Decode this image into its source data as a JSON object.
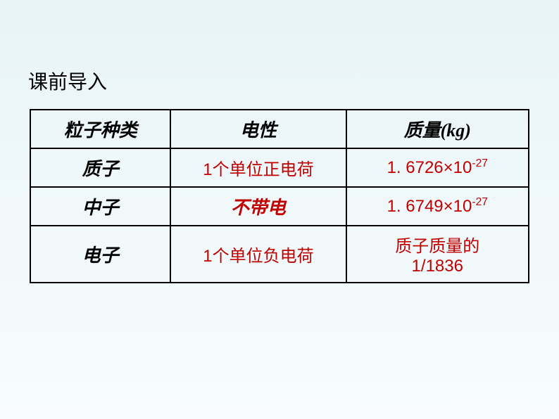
{
  "title": "课前导入",
  "table": {
    "headers": [
      "粒子种类",
      "电性",
      "质量(kg)"
    ],
    "rows": [
      {
        "particle": "质子",
        "charge": "1个单位正电荷",
        "mass_html": "1. 6726×10<sup>-27</sup>"
      },
      {
        "particle": "中子",
        "charge": "不带电",
        "mass_html": "1. 6749×10<sup>-27</sup>"
      },
      {
        "particle": "电子",
        "charge": "1个单位负电荷",
        "mass_html": "质子质量的<br>1/1836"
      }
    ],
    "col_widths": [
      "200px",
      "250px",
      "260px"
    ],
    "header_color": "#000000",
    "particle_color": "#000000",
    "value_color": "#c00000",
    "border_color": "#000000",
    "border_width": "2.5px"
  },
  "background": {
    "gradient_start": "#e8f4f7",
    "gradient_mid": "#f0f8fa",
    "gradient_end": "#f8fcfd"
  },
  "fonts": {
    "title_family": "Microsoft YaHei",
    "title_size": 28,
    "table_family_kai": "KaiTi",
    "table_size": 26,
    "value_family": "Microsoft YaHei",
    "value_size": 24
  }
}
